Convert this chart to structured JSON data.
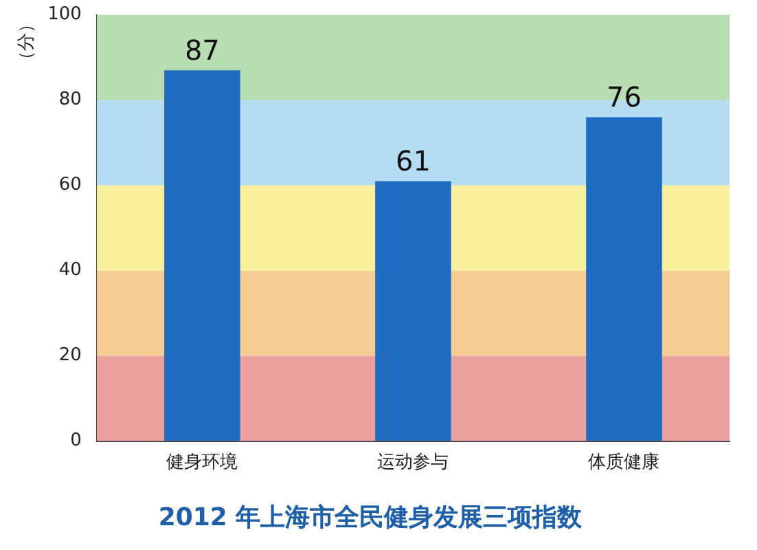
{
  "chart_data": {
    "type": "bar",
    "title": "2012 年上海市全民健身发展三项指数",
    "ylabel": "（分）",
    "categories": [
      "健身环境",
      "运动参与",
      "体质健康"
    ],
    "values": [
      87,
      61,
      76
    ],
    "color": "#1f6cc0",
    "ylim": [
      0,
      100
    ],
    "yticks": [
      0,
      20,
      40,
      60,
      80,
      100
    ],
    "grid": false,
    "data_labels": true,
    "bands": [
      {
        "axis": "y",
        "from": 0,
        "to": 20,
        "color": "#eaa09c"
      },
      {
        "axis": "y",
        "from": 20,
        "to": 40,
        "color": "#f6cb94"
      },
      {
        "axis": "y",
        "from": 40,
        "to": 60,
        "color": "#f8f09c"
      },
      {
        "axis": "y",
        "from": 60,
        "to": 80,
        "color": "#b5dcf0"
      },
      {
        "axis": "y",
        "from": 80,
        "to": 100,
        "color": "#b9ddb2"
      }
    ]
  }
}
